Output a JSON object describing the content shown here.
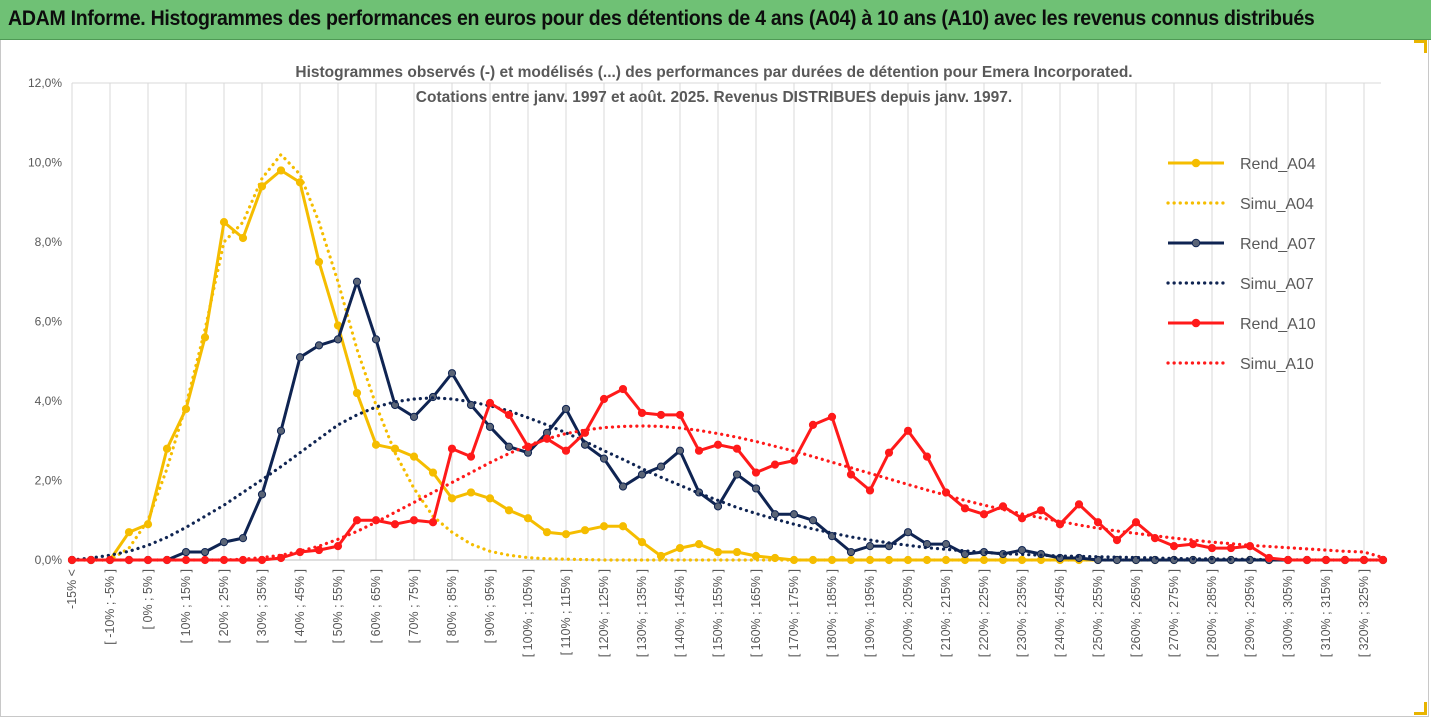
{
  "banner": {
    "title": "ADAM Informe. Histogrammes des performances en euros pour des détentions de 4 ans (A04) à 10 ans (A10) avec les revenus connus distribués"
  },
  "colors": {
    "banner_bg": "#6fc175",
    "a04": "#f5bd00",
    "a07": "#0f2452",
    "a10": "#ff1a1a",
    "grid": "#d9d9d9"
  },
  "chart_data": {
    "type": "line",
    "title": [
      "Histogrammes observés (-) et modélisés (...) des performances par durées de détention pour Emera Incorporated.",
      "Cotations entre janv. 1997 et août. 2025. Revenus DISTRIBUES depuis janv. 1997."
    ],
    "xlabel": "",
    "ylabel": "",
    "ylim": [
      0,
      12
    ],
    "yticks": [
      "0,0%",
      "2,0%",
      "4,0%",
      "6,0%",
      "8,0%",
      "10,0%",
      "12,0%"
    ],
    "grid": "vertical",
    "legend_position": "right",
    "categories": [
      "-15% <",
      "[ -15% ; -10% ]",
      "[ -10% ; -5% ]",
      "[ -5% ; 0% ]",
      "[ 0% ; 5% ]",
      "[ 5% ; 10% ]",
      "[ 10% ; 15% ]",
      "[ 15% ; 20% ]",
      "[ 20% ; 25% ]",
      "[ 25% ; 30% ]",
      "[ 30% ; 35% ]",
      "[ 35% ; 40% ]",
      "[ 40% ; 45% ]",
      "[ 45% ; 50% ]",
      "[ 50% ; 55% ]",
      "[ 55% ; 60% ]",
      "[ 60% ; 65% ]",
      "[ 65% ; 70% ]",
      "[ 70% ; 75% ]",
      "[ 75% ; 80% ]",
      "[ 80% ; 85% ]",
      "[ 85% ; 90% ]",
      "[ 90% ; 95% ]",
      "[ 95% ; 100% ]",
      "[ 100% ; 105% ]",
      "[ 105% ; 110% ]",
      "[ 110% ; 115% ]",
      "[ 115% ; 120% ]",
      "[ 120% ; 125% ]",
      "[ 125% ; 130% ]",
      "[ 130% ; 135% ]",
      "[ 135% ; 140% ]",
      "[ 140% ; 145% ]",
      "[ 145% ; 150% ]",
      "[ 150% ; 155% ]",
      "[ 155% ; 160% ]",
      "[ 160% ; 165% ]",
      "[ 165% ; 170% ]",
      "[ 170% ; 175% ]",
      "[ 175% ; 180% ]",
      "[ 180% ; 185% ]",
      "[ 185% ; 190% ]",
      "[ 190% ; 195% ]",
      "[ 195% ; 200% ]",
      "[ 200% ; 205% ]",
      "[ 205% ; 210% ]",
      "[ 210% ; 215% ]",
      "[ 215% ; 220% ]",
      "[ 220% ; 225% ]",
      "[ 225% ; 230% ]",
      "[ 230% ; 235% ]",
      "[ 235% ; 240% ]",
      "[ 240% ; 245% ]",
      "[ 245% ; 250% ]",
      "[ 250% ; 255% ]",
      "[ 255% ; 260% ]",
      "[ 260% ; 265% ]",
      "[ 265% ; 270% ]",
      "[ 270% ; 275% ]",
      "[ 275% ; 280% ]",
      "[ 280% ; 285% ]",
      "[ 285% ; 290% ]",
      "[ 290% ; 295% ]",
      "[ 295% ; 300% ]",
      "[ 300% ; 305% ]",
      "[ 305% ; 310% ]",
      "[ 310% ; 315% ]",
      "[ 315% ; 320% ]",
      "[ 320% ; 325% ]",
      "[ 325% ; 330% ]"
    ],
    "x_labels_shown": [
      "-15% <",
      "[ -10% ; -5% ]",
      "[ 0% ; 5% ]",
      "[ 10% ; 15% ]",
      "[ 20% ; 25% ]",
      "[ 30% ; 35% ]",
      "[ 40% ; 45% ]",
      "[ 50% ; 55% ]",
      "[ 60% ; 65% ]",
      "[ 70% ; 75% ]",
      "[ 80% ; 85% ]",
      "[ 90% ; 95% ]",
      "[ 100% ; 105% ]",
      "[ 110% ; 115% ]",
      "[ 120% ; 125% ]",
      "[ 130% ; 135% ]",
      "[ 140% ; 145% ]",
      "[ 150% ; 155% ]",
      "[ 160% ; 165% ]",
      "[ 170% ; 175% ]",
      "[ 180% ; 185% ]",
      "[ 190% ; 195% ]",
      "[ 200% ; 205% ]",
      "[ 210% ; 215% ]",
      "[ 220% ; 225% ]",
      "[ 230% ; 235% ]",
      "[ 240% ; 245% ]",
      "[ 250% ; 255% ]",
      "[ 260% ; 265% ]",
      "[ 270% ; 275% ]",
      "[ 280% ; 285% ]",
      "[ 290% ; 295% ]",
      "[ 300% ; 305% ]",
      "[ 310% ; 315% ]",
      "[ 320% ; 325% ]"
    ],
    "series": [
      {
        "name": "Rend_A04",
        "style": "solid-markers",
        "color": "#f5bd00",
        "values": [
          0,
          0,
          0,
          0.7,
          0.9,
          2.8,
          3.8,
          5.6,
          8.5,
          8.1,
          9.4,
          9.8,
          9.5,
          7.5,
          5.9,
          4.2,
          2.9,
          2.8,
          2.6,
          2.2,
          1.55,
          1.7,
          1.55,
          1.25,
          1.05,
          0.7,
          0.65,
          0.75,
          0.85,
          0.85,
          0.45,
          0.1,
          0.3,
          0.4,
          0.2,
          0.2,
          0.1,
          0.05,
          0,
          0,
          0,
          0,
          0,
          0,
          0,
          0,
          0,
          0,
          0,
          0,
          0,
          0,
          0,
          0,
          0,
          0,
          0,
          0,
          0,
          0,
          0,
          0,
          0,
          0,
          0,
          0,
          0,
          0,
          0,
          0
        ]
      },
      {
        "name": "Simu_A04",
        "style": "dotted",
        "color": "#f5bd00",
        "values": [
          0,
          0,
          0,
          0.3,
          1.0,
          2.3,
          3.9,
          5.8,
          8.0,
          8.5,
          9.6,
          10.2,
          9.7,
          8.5,
          7.0,
          5.3,
          3.9,
          2.7,
          1.8,
          1.1,
          0.7,
          0.4,
          0.22,
          0.12,
          0.06,
          0.03,
          0.02,
          0.01,
          0,
          0,
          0,
          0,
          0,
          0,
          0,
          0,
          0,
          0,
          0,
          0,
          0,
          0,
          0,
          0,
          0,
          0,
          0,
          0,
          0,
          0,
          0,
          0,
          0,
          0,
          0,
          0,
          0,
          0,
          0,
          0,
          0,
          0,
          0,
          0,
          0,
          0,
          0,
          0,
          0,
          0
        ]
      },
      {
        "name": "Rend_A07",
        "style": "solid-markers",
        "color": "#0f2452",
        "values": [
          0,
          0,
          0,
          0,
          0,
          0,
          0.2,
          0.2,
          0.45,
          0.55,
          1.65,
          3.25,
          5.1,
          5.4,
          5.55,
          7.0,
          5.55,
          3.9,
          3.6,
          4.1,
          4.7,
          3.9,
          3.35,
          2.85,
          2.7,
          3.2,
          3.8,
          2.9,
          2.55,
          1.85,
          2.15,
          2.35,
          2.75,
          1.7,
          1.35,
          2.15,
          1.8,
          1.15,
          1.15,
          1.0,
          0.6,
          0.2,
          0.35,
          0.35,
          0.7,
          0.4,
          0.4,
          0.15,
          0.2,
          0.15,
          0.25,
          0.15,
          0.05,
          0.05,
          0,
          0,
          0,
          0,
          0,
          0,
          0,
          0,
          0,
          0,
          0,
          0,
          0,
          0,
          0,
          0
        ]
      },
      {
        "name": "Simu_A07",
        "style": "dotted",
        "color": "#0f2452",
        "values": [
          0,
          0.05,
          0.12,
          0.22,
          0.37,
          0.57,
          0.82,
          1.1,
          1.38,
          1.7,
          2.02,
          2.35,
          2.7,
          3.05,
          3.4,
          3.65,
          3.85,
          3.98,
          4.05,
          4.08,
          4.05,
          3.98,
          3.88,
          3.75,
          3.58,
          3.4,
          3.2,
          2.98,
          2.75,
          2.53,
          2.3,
          2.08,
          1.88,
          1.68,
          1.5,
          1.32,
          1.17,
          1.03,
          0.9,
          0.78,
          0.68,
          0.58,
          0.5,
          0.43,
          0.37,
          0.31,
          0.27,
          0.23,
          0.19,
          0.16,
          0.14,
          0.12,
          0.1,
          0.09,
          0.08,
          0.07,
          0.06,
          0.05,
          0.04,
          0.03,
          0.03,
          0.02,
          0.02,
          0.01,
          0.01,
          0,
          0,
          0,
          0,
          0
        ]
      },
      {
        "name": "Rend_A10",
        "style": "solid-markers",
        "color": "#ff1a1a",
        "values": [
          0,
          0,
          0,
          0,
          0,
          0,
          0,
          0,
          0,
          0,
          0,
          0.05,
          0.2,
          0.25,
          0.35,
          1.0,
          1.0,
          0.9,
          1.0,
          0.95,
          2.8,
          2.6,
          3.95,
          3.65,
          2.85,
          3.05,
          2.75,
          3.2,
          4.05,
          4.3,
          3.7,
          3.65,
          3.65,
          2.75,
          2.9,
          2.8,
          2.2,
          2.4,
          2.5,
          3.4,
          3.6,
          2.15,
          1.75,
          2.7,
          3.25,
          2.6,
          1.7,
          1.3,
          1.15,
          1.35,
          1.05,
          1.25,
          0.9,
          1.4,
          0.95,
          0.5,
          0.95,
          0.55,
          0.35,
          0.4,
          0.3,
          0.3,
          0.35,
          0.05,
          0,
          0,
          0,
          0,
          0,
          0
        ]
      },
      {
        "name": "Simu_A10",
        "style": "dotted",
        "color": "#ff1a1a",
        "values": [
          0,
          0,
          0,
          0,
          0,
          0,
          0,
          0,
          0,
          0.02,
          0.06,
          0.12,
          0.22,
          0.35,
          0.52,
          0.72,
          0.95,
          1.2,
          1.45,
          1.7,
          1.95,
          2.2,
          2.45,
          2.68,
          2.88,
          3.05,
          3.18,
          3.27,
          3.33,
          3.36,
          3.37,
          3.36,
          3.32,
          3.26,
          3.18,
          3.09,
          2.98,
          2.86,
          2.74,
          2.6,
          2.46,
          2.32,
          2.18,
          2.04,
          1.9,
          1.76,
          1.63,
          1.5,
          1.38,
          1.27,
          1.16,
          1.06,
          0.97,
          0.88,
          0.8,
          0.73,
          0.67,
          0.61,
          0.55,
          0.5,
          0.45,
          0.41,
          0.37,
          0.34,
          0.31,
          0.28,
          0.25,
          0.22,
          0.2,
          0.06
        ]
      }
    ]
  }
}
